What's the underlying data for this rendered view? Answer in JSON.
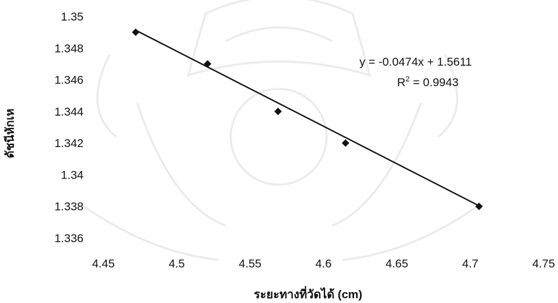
{
  "chart_data": {
    "type": "scatter",
    "title": "",
    "xlabel": "ระยะทางที่วัดได้ (cm)",
    "ylabel": "ดัชนีหักเห",
    "xlim": [
      4.45,
      4.75
    ],
    "ylim": [
      1.336,
      1.35
    ],
    "x_ticks": [
      "4.45",
      "4.5",
      "4.55",
      "4.6",
      "4.65",
      "4.7",
      "4.75"
    ],
    "y_ticks": [
      "1.336",
      "1.338",
      "1.34",
      "1.342",
      "1.344",
      "1.346",
      "1.348",
      "1.35"
    ],
    "x_tick_values": [
      4.45,
      4.5,
      4.55,
      4.6,
      4.65,
      4.7,
      4.75
    ],
    "y_tick_values": [
      1.336,
      1.338,
      1.34,
      1.342,
      1.344,
      1.346,
      1.348,
      1.35
    ],
    "series": [
      {
        "x": [
          4.472,
          4.521,
          4.569,
          4.615,
          4.706
        ],
        "y": [
          1.349,
          1.347,
          1.344,
          1.342,
          1.338
        ]
      }
    ],
    "trendline": {
      "type": "linear",
      "slope": -0.0474,
      "intercept": 1.5611,
      "equation_label": "y = -0.0474x + 1.5611",
      "r2_prefix": "R",
      "r2_sup": "2",
      "r2_suffix": " = 0.9943"
    },
    "grid": false,
    "legend": "none",
    "colors": {
      "marker": "#111111",
      "line": "#111111",
      "text": "#111111",
      "watermark": "#999999"
    }
  }
}
